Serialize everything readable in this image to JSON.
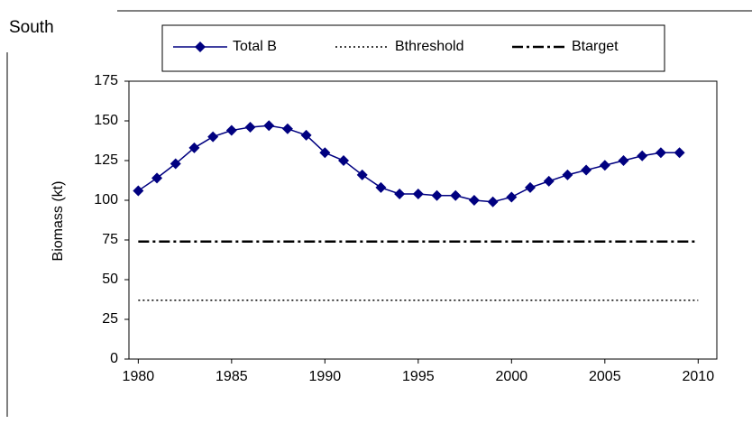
{
  "chart_data": {
    "type": "line",
    "title": "South",
    "y_label": "Biomass (kt)",
    "x": [
      1980,
      1981,
      1982,
      1983,
      1984,
      1985,
      1986,
      1987,
      1988,
      1989,
      1990,
      1991,
      1992,
      1993,
      1994,
      1995,
      1996,
      1997,
      1998,
      1999,
      2000,
      2001,
      2002,
      2003,
      2004,
      2005,
      2006,
      2007,
      2008,
      2009
    ],
    "series": [
      {
        "name": "Total B",
        "color": "#000080",
        "style": "solid",
        "marker": "diamond",
        "values": [
          106,
          114,
          123,
          133,
          140,
          144,
          146,
          147,
          145,
          141,
          130,
          125,
          116,
          108,
          104,
          104,
          103,
          103,
          100,
          99,
          102,
          108,
          112,
          116,
          119,
          122,
          125,
          128,
          130,
          130
        ]
      },
      {
        "name": "Bthreshold",
        "color": "#000000",
        "style": "dotted",
        "x": [
          1980,
          2010
        ],
        "values": [
          37,
          37
        ]
      },
      {
        "name": "Btarget",
        "color": "#000000",
        "style": "dashdot",
        "x": [
          1980,
          2010
        ],
        "values": [
          74,
          74
        ]
      }
    ],
    "xlim": [
      1979.5,
      2011
    ],
    "xticks": [
      1980,
      1985,
      1990,
      1995,
      2000,
      2005,
      2010
    ],
    "ylim": [
      0,
      175
    ],
    "yticks": [
      0,
      25,
      50,
      75,
      100,
      125,
      150,
      175
    ],
    "grid": false,
    "legend": "top"
  }
}
